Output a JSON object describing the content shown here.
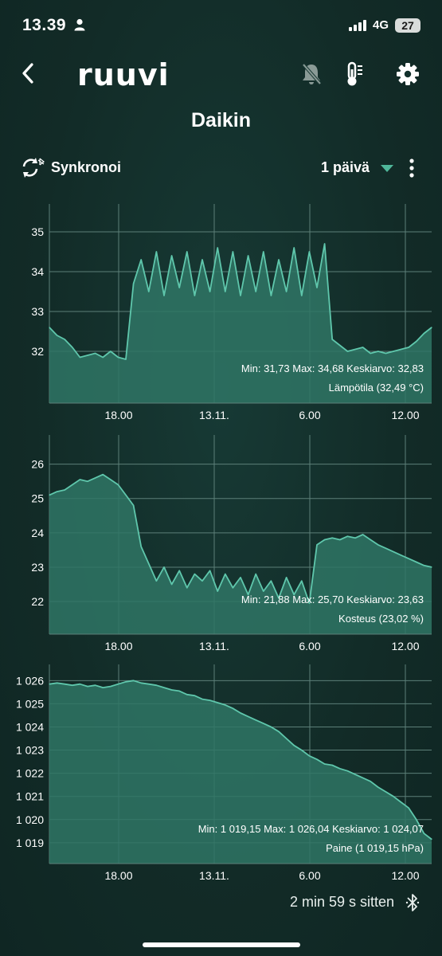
{
  "status_bar": {
    "time": "13.39",
    "network": "4G",
    "battery": "27"
  },
  "header": {
    "logo": "ruuvi",
    "title": "Daikin"
  },
  "toolbar": {
    "sync_label": "Synkronoi",
    "period_label": "1 päivä"
  },
  "footer": {
    "last_update": "2 min 59 s sitten"
  },
  "colors": {
    "background": "#13302c",
    "line": "#5fc7ac",
    "fill": "#2f7565",
    "grid": "#5c7f78"
  },
  "icons": [
    "back-arrow-icon",
    "bell-muted-icon",
    "thermometer-icon",
    "gear-icon",
    "sync-icon",
    "chevron-down-icon",
    "more-vertical-icon",
    "bluetooth-icon",
    "person-icon",
    "signal-icon"
  ],
  "chart_data": [
    {
      "type": "area",
      "x_ticks": [
        "18.00",
        "13.11.",
        "6.00",
        "12.00"
      ],
      "y_ticks": [
        "32",
        "33",
        "34",
        "35"
      ],
      "ylim": [
        30.7,
        35.7
      ],
      "stats_text": "Min: 31,73 Max: 34,68 Keskiarvo: 32,83",
      "legend_text": "Lämpötila (32,49 °C)",
      "series": [
        {
          "x": [
            0,
            2,
            4,
            6,
            8,
            10,
            12,
            14,
            16,
            18,
            20,
            22,
            24,
            26,
            28,
            30,
            32,
            34,
            36,
            38,
            40,
            42,
            44,
            46,
            48,
            50,
            52,
            54,
            56,
            58,
            60,
            62,
            64,
            66,
            68,
            70,
            72,
            74,
            76,
            78,
            80,
            82,
            84,
            86,
            88,
            90,
            92,
            94,
            96,
            98,
            100
          ],
          "values": [
            32.6,
            32.4,
            32.3,
            32.1,
            31.85,
            31.9,
            31.95,
            31.85,
            32.0,
            31.85,
            31.8,
            33.7,
            34.3,
            33.5,
            34.5,
            33.4,
            34.4,
            33.6,
            34.5,
            33.4,
            34.3,
            33.5,
            34.6,
            33.5,
            34.5,
            33.4,
            34.4,
            33.5,
            34.5,
            33.4,
            34.3,
            33.5,
            34.6,
            33.4,
            34.5,
            33.6,
            34.7,
            32.3,
            32.15,
            32.0,
            32.05,
            32.1,
            31.95,
            32.0,
            31.95,
            32.0,
            32.05,
            32.1,
            32.25,
            32.45,
            32.6
          ]
        }
      ]
    },
    {
      "type": "area",
      "x_ticks": [
        "18.00",
        "13.11.",
        "6.00",
        "12.00"
      ],
      "y_ticks": [
        "22",
        "23",
        "24",
        "25",
        "26"
      ],
      "ylim": [
        21.05,
        26.85
      ],
      "stats_text": "Min: 21,88 Max: 25,70 Keskiarvo: 23,63",
      "legend_text": "Kosteus (23,02 %)",
      "series": [
        {
          "x": [
            0,
            2,
            4,
            6,
            8,
            10,
            12,
            14,
            16,
            18,
            20,
            22,
            24,
            26,
            28,
            30,
            32,
            34,
            36,
            38,
            40,
            42,
            44,
            46,
            48,
            50,
            52,
            54,
            56,
            58,
            60,
            62,
            64,
            66,
            68,
            70,
            72,
            74,
            76,
            78,
            80,
            82,
            84,
            86,
            88,
            90,
            92,
            94,
            96,
            98,
            100
          ],
          "values": [
            25.1,
            25.2,
            25.25,
            25.4,
            25.55,
            25.5,
            25.6,
            25.7,
            25.55,
            25.4,
            25.1,
            24.8,
            23.6,
            23.1,
            22.6,
            23.0,
            22.5,
            22.9,
            22.4,
            22.8,
            22.6,
            22.9,
            22.3,
            22.8,
            22.4,
            22.7,
            22.2,
            22.8,
            22.3,
            22.6,
            22.1,
            22.7,
            22.2,
            22.6,
            21.95,
            23.65,
            23.8,
            23.85,
            23.8,
            23.9,
            23.85,
            23.95,
            23.8,
            23.65,
            23.55,
            23.45,
            23.35,
            23.25,
            23.15,
            23.05,
            23.0
          ]
        }
      ]
    },
    {
      "type": "area",
      "x_ticks": [
        "18.00",
        "13.11.",
        "6.00",
        "12.00"
      ],
      "y_ticks": [
        "1 019",
        "1 020",
        "1 021",
        "1 022",
        "1 023",
        "1 024",
        "1 025",
        "1 026"
      ],
      "ylim": [
        1018.1,
        1026.7
      ],
      "stats_text": "Min: 1 019,15 Max: 1 026,04 Keskiarvo: 1 024,07",
      "legend_text": "Paine (1 019,15 hPa)",
      "series": [
        {
          "x": [
            0,
            2,
            4,
            6,
            8,
            10,
            12,
            14,
            16,
            18,
            20,
            22,
            24,
            26,
            28,
            30,
            32,
            34,
            36,
            38,
            40,
            42,
            44,
            46,
            48,
            50,
            52,
            54,
            56,
            58,
            60,
            62,
            64,
            66,
            68,
            70,
            72,
            74,
            76,
            78,
            80,
            82,
            84,
            86,
            88,
            90,
            92,
            94,
            96,
            98,
            100
          ],
          "values": [
            1025.85,
            1025.9,
            1025.85,
            1025.8,
            1025.85,
            1025.75,
            1025.8,
            1025.7,
            1025.75,
            1025.85,
            1025.95,
            1026.0,
            1025.9,
            1025.85,
            1025.8,
            1025.7,
            1025.6,
            1025.55,
            1025.4,
            1025.35,
            1025.2,
            1025.15,
            1025.05,
            1024.95,
            1024.8,
            1024.6,
            1024.45,
            1024.3,
            1024.15,
            1024.0,
            1023.8,
            1023.5,
            1023.2,
            1023.0,
            1022.75,
            1022.6,
            1022.4,
            1022.35,
            1022.2,
            1022.1,
            1021.95,
            1021.8,
            1021.65,
            1021.4,
            1021.2,
            1021.0,
            1020.75,
            1020.5,
            1020.0,
            1019.4,
            1019.15
          ]
        }
      ]
    }
  ]
}
